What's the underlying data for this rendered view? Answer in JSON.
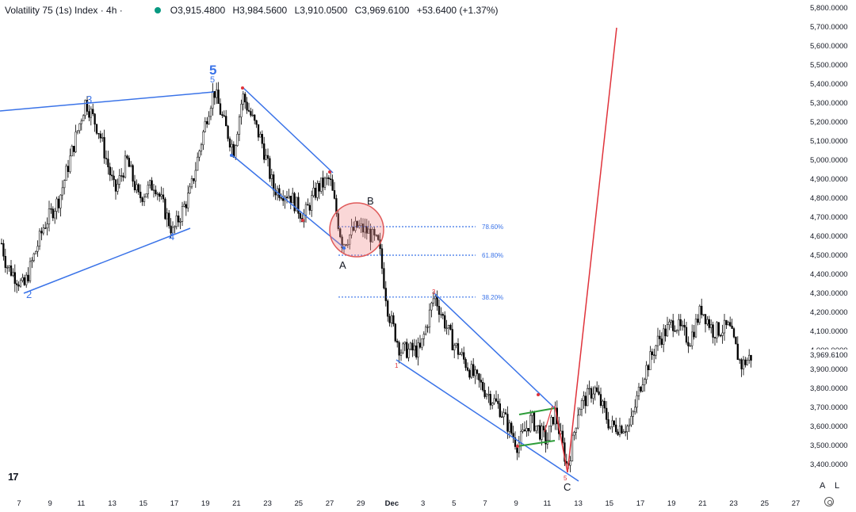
{
  "header": {
    "title": "Volatility 75 (1s) Index · 4h ·",
    "status_color": "#089981",
    "open": "O3,915.4800",
    "high": "H3,984.5600",
    "low": "L3,910.0500",
    "close": "C3,969.6100",
    "change": "+53.6400 (+1.37%)"
  },
  "price_scale": {
    "labels": [
      "5,800.0000",
      "5,700.0000",
      "5,600.0000",
      "5,500.0000",
      "5,400.0000",
      "5,300.0000",
      "5,200.0000",
      "5,100.0000",
      "5,000.0000",
      "4,900.0000",
      "4,800.0000",
      "4,700.0000",
      "4,600.0000",
      "4,500.0000",
      "4,400.0000",
      "4,300.0000",
      "4,200.0000",
      "4,100.0000",
      "4,000.0000",
      "3,900.0000",
      "3,800.0000",
      "3,700.0000",
      "3,600.0000",
      "3,500.0000",
      "3,400.0000"
    ],
    "last_price": "3,969.6100"
  },
  "time_scale": {
    "labels": [
      "7",
      "9",
      "11",
      "13",
      "15",
      "17",
      "19",
      "21",
      "23",
      "25",
      "27",
      "29",
      "Dec",
      "3",
      "5",
      "7",
      "9",
      "11",
      "13",
      "15",
      "17",
      "19",
      "21",
      "23",
      "25",
      "27"
    ]
  },
  "buttons": {
    "auto": "A",
    "log": "L",
    "logo": "17"
  },
  "fib_levels": [
    {
      "label": "78.60%",
      "price": 4650
    },
    {
      "label": "61.80%",
      "price": 4500
    },
    {
      "label": "38.20%",
      "price": 4280
    }
  ],
  "wave_labels": {
    "major_5": "5",
    "minor_5": "5",
    "w3": "3",
    "w2": "2",
    "w4": "4",
    "A": "A",
    "B": "B",
    "C": "C",
    "c1": "1",
    "c3": "3",
    "c5": "5"
  },
  "chart_data": {
    "type": "candlestick",
    "title": "Volatility 75 (1s) Index · 4h",
    "timeframe": "4h",
    "ylim": [
      3350,
      5830
    ],
    "x_range": [
      "Nov 6",
      "Dec 28"
    ],
    "last_close": 3969.61,
    "colors": {
      "candles": "#000000",
      "trendlines": "#3a73e8",
      "projection": "#e0333b",
      "fib": "#3a73e8",
      "zone": "#f5c6c6"
    },
    "key_points": [
      {
        "label": "2",
        "date": "Nov 7",
        "price": 4320
      },
      {
        "label": "3",
        "date": "Nov 11",
        "price": 5310
      },
      {
        "label": "4",
        "date": "Nov 17",
        "price": 4620
      },
      {
        "label": "5",
        "date": "Nov 20",
        "price": 5380
      },
      {
        "label": "A",
        "date": "Nov 28",
        "price": 4510
      },
      {
        "label": "B",
        "date": "Nov 29",
        "price": 4690
      },
      {
        "label": "C",
        "date": "Dec 12",
        "price": 3350
      },
      {
        "label": "last",
        "date": "Dec 24",
        "price": 3969.61
      }
    ],
    "projection": {
      "from": {
        "date": "Dec 12",
        "price": 3360
      },
      "to": {
        "date": "Dec 15",
        "price": 5700
      }
    }
  }
}
